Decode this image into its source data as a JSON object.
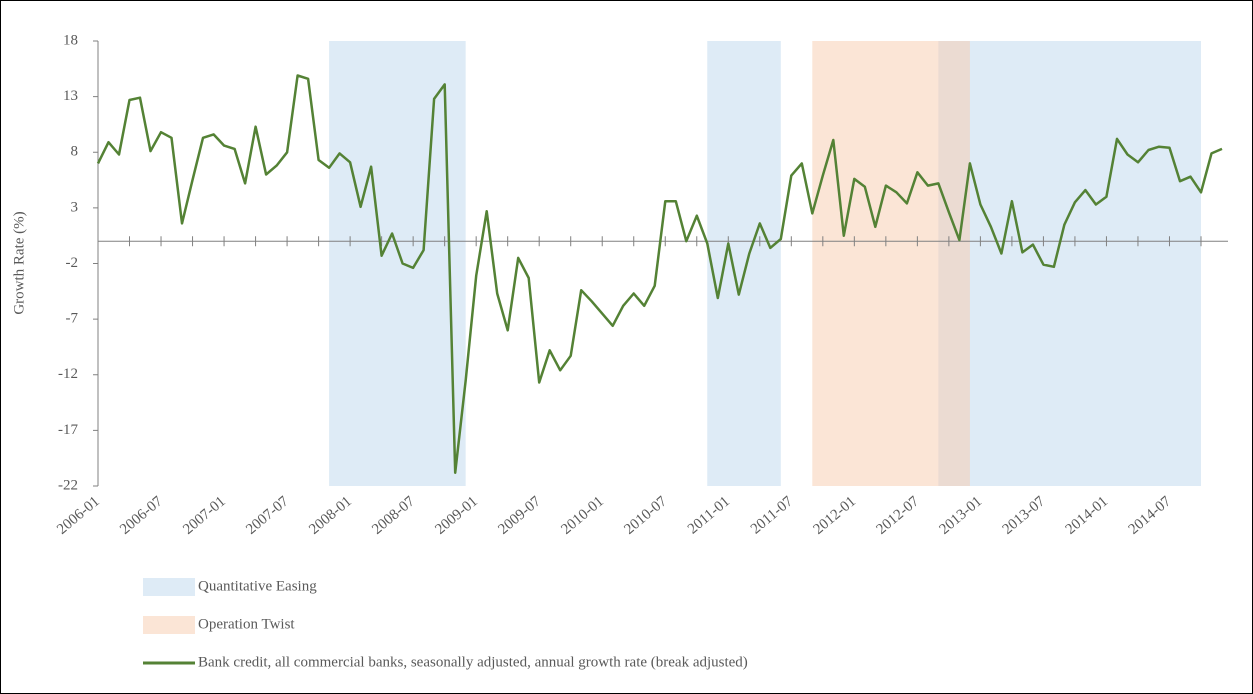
{
  "chart_data": {
    "type": "line",
    "y_label": "Growth Rate (%)",
    "categories": [
      "2006-01",
      null,
      null,
      null,
      null,
      null,
      "2006-07",
      null,
      null,
      null,
      null,
      null,
      "2007-01",
      null,
      null,
      null,
      null,
      null,
      "2007-07",
      null,
      null,
      null,
      null,
      null,
      "2008-01",
      null,
      null,
      null,
      null,
      null,
      "2008-07",
      null,
      null,
      null,
      null,
      null,
      "2009-01",
      null,
      null,
      null,
      null,
      null,
      "2009-07",
      null,
      null,
      null,
      null,
      null,
      "2010-01",
      null,
      null,
      null,
      null,
      null,
      "2010-07",
      null,
      null,
      null,
      null,
      null,
      "2011-01",
      null,
      null,
      null,
      null,
      null,
      "2011-07",
      null,
      null,
      null,
      null,
      null,
      "2012-01",
      null,
      null,
      null,
      null,
      null,
      "2012-07",
      null,
      null,
      null,
      null,
      null,
      "2013-01",
      null,
      null,
      null,
      null,
      null,
      "2013-07",
      null,
      null,
      null,
      null,
      null,
      "2014-01",
      null,
      null,
      null,
      null,
      null,
      "2014-07",
      null,
      null,
      null,
      null,
      null
    ],
    "series": [
      {
        "name": "Bank credit, all commercial banks, seasonally adjusted, annual growth rate (break adjusted)",
        "color": "#548235",
        "values": [
          7.0,
          8.9,
          7.8,
          12.7,
          12.9,
          8.1,
          9.8,
          9.3,
          1.6,
          5.5,
          9.3,
          9.6,
          8.6,
          8.3,
          5.2,
          10.3,
          6.0,
          6.8,
          8.0,
          14.9,
          14.6,
          7.3,
          6.6,
          7.9,
          7.1,
          3.1,
          6.7,
          -1.3,
          0.7,
          -2.0,
          -2.4,
          -0.8,
          12.8,
          14.1,
          -20.8,
          -12.5,
          -3.1,
          2.7,
          -4.7,
          -8.0,
          -1.5,
          -3.3,
          -12.7,
          -9.8,
          -11.6,
          -10.3,
          -4.4,
          -5.4,
          -6.5,
          -7.6,
          -5.8,
          -4.7,
          -5.8,
          -4.0,
          3.6,
          3.6,
          0.0,
          2.3,
          -0.2,
          -5.1,
          -0.2,
          -4.8,
          -1.1,
          1.6,
          -0.6,
          0.2,
          5.9,
          7.0,
          2.5,
          5.9,
          9.1,
          0.5,
          5.6,
          4.9,
          1.3,
          5.0,
          4.4,
          3.4,
          6.2,
          5.0,
          5.2,
          2.6,
          0.1,
          7.0,
          3.3,
          1.3,
          -1.1,
          3.6,
          -1.0,
          -0.3,
          -2.1,
          -2.3,
          1.5,
          3.5,
          4.6,
          3.3,
          4.0,
          9.2,
          7.8,
          7.1,
          8.2,
          8.5,
          8.4,
          5.4,
          5.8,
          4.4,
          7.9,
          8.3
        ]
      }
    ],
    "shaded_regions": [
      {
        "name": "Quantitative Easing",
        "color": "#bdd7ee",
        "spans": [
          [
            22,
            35
          ],
          [
            58,
            65
          ],
          [
            80,
            105
          ]
        ]
      },
      {
        "name": "Operation Twist",
        "color": "#f8cbad",
        "spans": [
          [
            68,
            83
          ]
        ]
      }
    ],
    "ylim": [
      -22,
      18
    ],
    "yticks": [
      -22,
      -17,
      -12,
      -7,
      -2,
      3,
      8,
      13,
      18
    ]
  }
}
